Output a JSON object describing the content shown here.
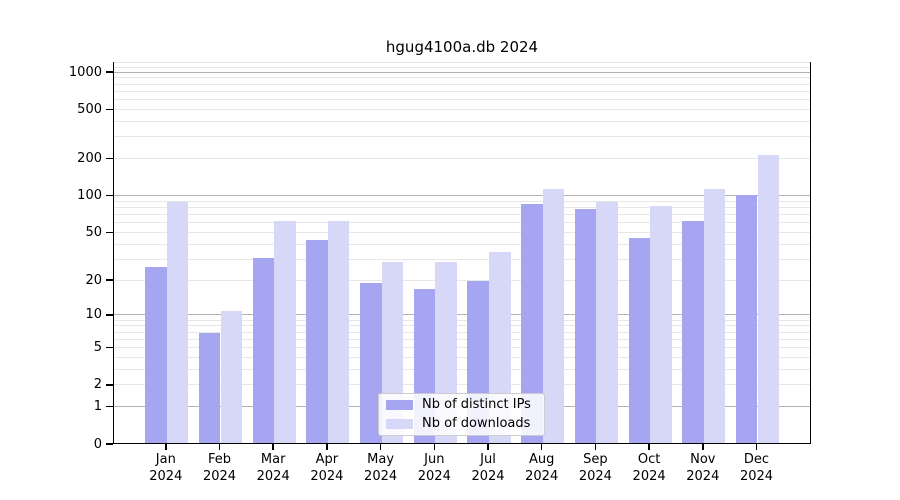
{
  "title": "hgug4100a.db 2024",
  "chart_data": {
    "type": "bar",
    "title": "hgug4100a.db 2024",
    "scale": "log1p",
    "categories": [
      "Jan",
      "Feb",
      "Mar",
      "Apr",
      "May",
      "Jun",
      "Jul",
      "Aug",
      "Sep",
      "Oct",
      "Nov",
      "Dec"
    ],
    "year": "2024",
    "series": [
      {
        "name": "Nb of distinct IPs",
        "color": "#a5a5f2",
        "values": [
          26,
          7,
          31,
          44,
          19,
          17,
          20,
          87,
          78,
          45,
          63,
          103
        ]
      },
      {
        "name": "Nb of downloads",
        "color": "#d7d7f8",
        "values": [
          90,
          11,
          63,
          63,
          29,
          29,
          35,
          115,
          89,
          83,
          115,
          215
        ]
      }
    ],
    "yticks": [
      0,
      1,
      2,
      5,
      10,
      20,
      50,
      100,
      200,
      500,
      1000
    ],
    "ylim": [
      0,
      1250
    ],
    "xlabel": "",
    "ylabel": "",
    "grid": "on",
    "legend_position": "bottom-center",
    "grid_major_color": "#b3b3b3",
    "grid_minor_color": "#e7e7e7"
  }
}
